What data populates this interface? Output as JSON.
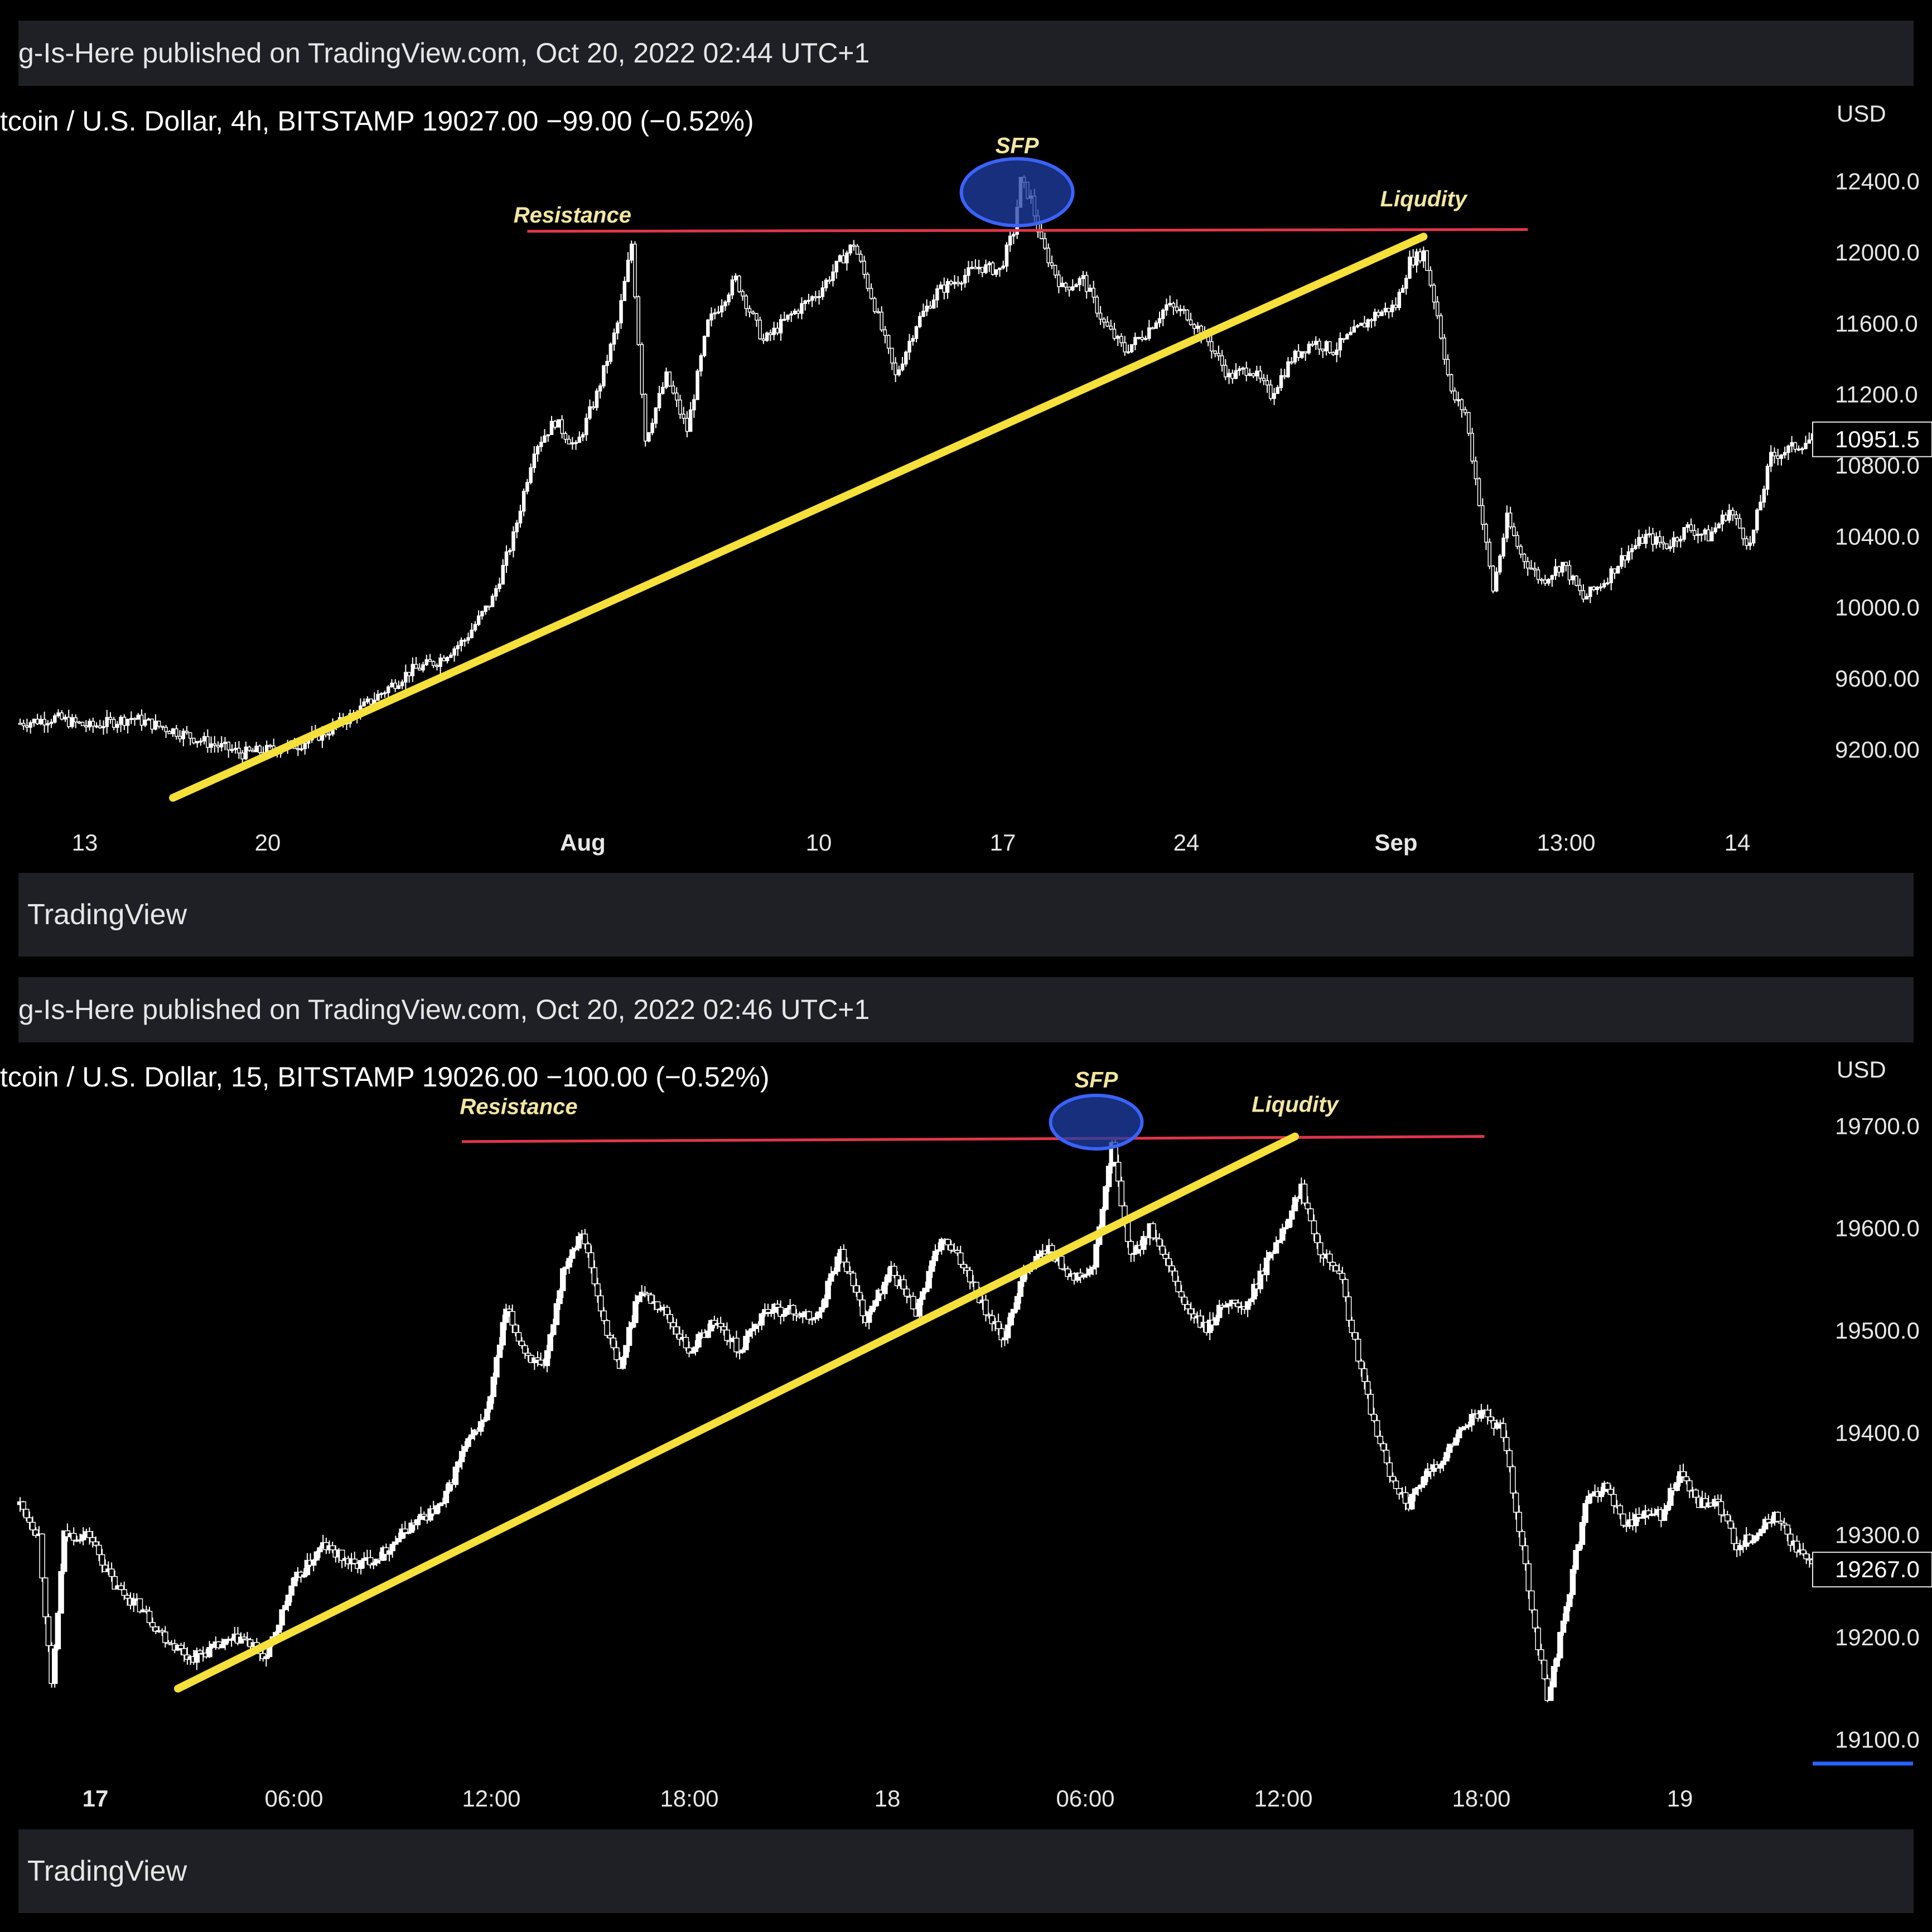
{
  "panels": [
    {
      "publisher": "g-Is-Here published on TradingView.com, Oct 20, 2022 02:44 UTC+1",
      "symbol_line": "tcoin / U.S. Dollar, 4h, BITSTAMP  19027.00  −99.00 (−0.52%)",
      "currency": "USD",
      "brand": "TradingView",
      "price_labels": [
        "12400.0",
        "12000.0",
        "11600.0",
        "11200.0",
        "10800.0",
        "10400.0",
        "10000.0",
        "9600.00",
        "9200.00"
      ],
      "last_price_label": "10951.5",
      "time_labels": [
        "13",
        "20",
        "Aug",
        "10",
        "17",
        "24",
        "Sep",
        "13:00",
        "14"
      ],
      "bold_time_labels": [
        "Aug",
        "Sep"
      ],
      "annotations": {
        "resistance": "Resistance",
        "sfp": "SFP",
        "liquidity": "Liqudity"
      }
    },
    {
      "publisher": "g-Is-Here published on TradingView.com, Oct 20, 2022 02:46 UTC+1",
      "symbol_line": "tcoin / U.S. Dollar, 15, BITSTAMP  19026.00  −100.00 (−0.52%)",
      "currency": "USD",
      "brand": "TradingView",
      "price_labels": [
        "19700.0",
        "19600.0",
        "19500.0",
        "19400.0",
        "19300.0",
        "19200.0",
        "19100.0"
      ],
      "last_price_label": "19267.0",
      "time_labels": [
        "17",
        "06:00",
        "12:00",
        "18:00",
        "18",
        "06:00",
        "12:00",
        "18:00",
        "19"
      ],
      "bold_time_labels": [
        "17"
      ],
      "annotations": {
        "resistance": "Resistance",
        "sfp": "SFP",
        "liquidity": "Liqudity"
      }
    }
  ],
  "colors": {
    "background": "#000000",
    "bar": "#1e2025",
    "candle": "#ffffff",
    "resistance": "#e0364a",
    "trendline": "#f5e03c",
    "sfp_circle": "#1f3fa6",
    "annotation_text": "#f3e6a0",
    "last_price_line": "#2962ff"
  },
  "chart_data": [
    {
      "type": "candlestick",
      "title": "tcoin / U.S. Dollar, 4h, BITSTAMP",
      "y_unit": "USD",
      "ylim": [
        8900,
        12700
      ],
      "x_ticks": [
        "13",
        "20",
        "Aug",
        "10",
        "17",
        "24",
        "Sep",
        "13:00",
        "14"
      ],
      "y_ticks": [
        9200,
        9600,
        10000,
        10400,
        10800,
        11200,
        11600,
        12000,
        12400
      ],
      "last_price": 10951.5,
      "price_path": [
        [
          0,
          9350
        ],
        [
          10,
          9380
        ],
        [
          20,
          9330
        ],
        [
          32,
          9380
        ],
        [
          44,
          9310
        ],
        [
          54,
          9240
        ],
        [
          64,
          9180
        ],
        [
          72,
          9200
        ],
        [
          80,
          9230
        ],
        [
          88,
          9300
        ],
        [
          96,
          9400
        ],
        [
          104,
          9520
        ],
        [
          112,
          9640
        ],
        [
          120,
          9700
        ],
        [
          128,
          9820
        ],
        [
          136,
          10050
        ],
        [
          142,
          10400
        ],
        [
          148,
          10900
        ],
        [
          154,
          11050
        ],
        [
          160,
          10900
        ],
        [
          166,
          11200
        ],
        [
          172,
          11600
        ],
        [
          176,
          12050
        ],
        [
          180,
          10950
        ],
        [
          186,
          11300
        ],
        [
          192,
          11000
        ],
        [
          198,
          11600
        ],
        [
          206,
          11850
        ],
        [
          214,
          11500
        ],
        [
          222,
          11650
        ],
        [
          230,
          11780
        ],
        [
          236,
          11950
        ],
        [
          240,
          12050
        ],
        [
          246,
          11700
        ],
        [
          252,
          11300
        ],
        [
          258,
          11600
        ],
        [
          264,
          11780
        ],
        [
          270,
          11850
        ],
        [
          276,
          11920
        ],
        [
          282,
          11900
        ],
        [
          286,
          12120
        ],
        [
          288,
          12400
        ],
        [
          291,
          12300
        ],
        [
          294,
          12050
        ],
        [
          300,
          11800
        ],
        [
          306,
          11850
        ],
        [
          312,
          11600
        ],
        [
          318,
          11450
        ],
        [
          324,
          11550
        ],
        [
          330,
          11700
        ],
        [
          336,
          11650
        ],
        [
          342,
          11500
        ],
        [
          348,
          11300
        ],
        [
          354,
          11350
        ],
        [
          360,
          11200
        ],
        [
          366,
          11400
        ],
        [
          372,
          11500
        ],
        [
          378,
          11450
        ],
        [
          384,
          11550
        ],
        [
          390,
          11650
        ],
        [
          396,
          11700
        ],
        [
          400,
          11950
        ],
        [
          404,
          12000
        ],
        [
          408,
          11650
        ],
        [
          412,
          11200
        ],
        [
          416,
          11100
        ],
        [
          420,
          10600
        ],
        [
          424,
          10100
        ],
        [
          428,
          10500
        ],
        [
          432,
          10300
        ],
        [
          438,
          10150
        ],
        [
          444,
          10250
        ],
        [
          450,
          10050
        ],
        [
          456,
          10150
        ],
        [
          462,
          10300
        ],
        [
          468,
          10400
        ],
        [
          474,
          10350
        ],
        [
          480,
          10450
        ],
        [
          486,
          10400
        ],
        [
          492,
          10550
        ],
        [
          498,
          10350
        ],
        [
          504,
          10850
        ],
        [
          510,
          10900
        ],
        [
          516,
          10951.5
        ]
      ],
      "series": [
        {
          "name": "Resistance",
          "values": [
            [
              146,
              12120
            ],
            [
              434,
              12130
            ]
          ]
        },
        {
          "name": "trendline",
          "values": [
            [
              44,
              8930
            ],
            [
              404,
              12090
            ]
          ]
        }
      ],
      "annotations": [
        {
          "text": "Resistance",
          "x": 159,
          "y": 12170
        },
        {
          "text": "SFP",
          "x": 287,
          "y": 12560
        },
        {
          "text": "Liqudity",
          "x": 404,
          "y": 12260
        }
      ]
    },
    {
      "type": "candlestick",
      "title": "tcoin / U.S. Dollar, 15, BITSTAMP",
      "y_unit": "USD",
      "ylim": [
        19080,
        19740
      ],
      "x_ticks": [
        "17",
        "06:00",
        "12:00",
        "18:00",
        "18",
        "06:00",
        "12:00",
        "18:00",
        "19"
      ],
      "y_ticks": [
        19100,
        19200,
        19300,
        19400,
        19500,
        19600,
        19700
      ],
      "last_price": 19267,
      "price_path": [
        [
          0,
          19330
        ],
        [
          6,
          19300
        ],
        [
          10,
          19150
        ],
        [
          14,
          19300
        ],
        [
          22,
          19300
        ],
        [
          30,
          19250
        ],
        [
          38,
          19230
        ],
        [
          46,
          19200
        ],
        [
          54,
          19180
        ],
        [
          62,
          19190
        ],
        [
          70,
          19200
        ],
        [
          78,
          19180
        ],
        [
          86,
          19250
        ],
        [
          96,
          19290
        ],
        [
          106,
          19270
        ],
        [
          114,
          19280
        ],
        [
          124,
          19310
        ],
        [
          134,
          19330
        ],
        [
          140,
          19380
        ],
        [
          148,
          19420
        ],
        [
          154,
          19520
        ],
        [
          160,
          19480
        ],
        [
          166,
          19460
        ],
        [
          172,
          19560
        ],
        [
          178,
          19600
        ],
        [
          184,
          19520
        ],
        [
          190,
          19460
        ],
        [
          196,
          19540
        ],
        [
          204,
          19520
        ],
        [
          212,
          19480
        ],
        [
          220,
          19510
        ],
        [
          228,
          19480
        ],
        [
          236,
          19520
        ],
        [
          244,
          19520
        ],
        [
          252,
          19510
        ],
        [
          260,
          19580
        ],
        [
          268,
          19510
        ],
        [
          276,
          19560
        ],
        [
          284,
          19520
        ],
        [
          292,
          19590
        ],
        [
          300,
          19560
        ],
        [
          306,
          19520
        ],
        [
          312,
          19490
        ],
        [
          318,
          19560
        ],
        [
          326,
          19580
        ],
        [
          334,
          19550
        ],
        [
          340,
          19560
        ],
        [
          346,
          19680
        ],
        [
          352,
          19570
        ],
        [
          358,
          19600
        ],
        [
          364,
          19560
        ],
        [
          370,
          19520
        ],
        [
          376,
          19500
        ],
        [
          382,
          19530
        ],
        [
          388,
          19520
        ],
        [
          394,
          19560
        ],
        [
          400,
          19600
        ],
        [
          406,
          19640
        ],
        [
          412,
          19580
        ],
        [
          418,
          19560
        ],
        [
          422,
          19500
        ],
        [
          428,
          19420
        ],
        [
          434,
          19360
        ],
        [
          440,
          19330
        ],
        [
          446,
          19360
        ],
        [
          452,
          19380
        ],
        [
          458,
          19410
        ],
        [
          464,
          19420
        ],
        [
          470,
          19400
        ],
        [
          476,
          19290
        ],
        [
          480,
          19210
        ],
        [
          484,
          19140
        ],
        [
          490,
          19230
        ],
        [
          496,
          19330
        ],
        [
          502,
          19350
        ],
        [
          508,
          19310
        ],
        [
          514,
          19320
        ],
        [
          520,
          19320
        ],
        [
          526,
          19360
        ],
        [
          532,
          19330
        ],
        [
          538,
          19330
        ],
        [
          544,
          19290
        ],
        [
          550,
          19300
        ],
        [
          556,
          19320
        ],
        [
          562,
          19290
        ],
        [
          568,
          19267
        ]
      ],
      "series": [
        {
          "name": "Resistance",
          "values": [
            [
              140,
              19685
            ],
            [
              464,
              19690
            ]
          ]
        },
        {
          "name": "trendline",
          "values": [
            [
              50,
              19150
            ],
            [
              404,
              19690
            ]
          ]
        }
      ],
      "annotations": [
        {
          "text": "Resistance",
          "x": 158,
          "y": 19712
        },
        {
          "text": "SFP",
          "x": 341,
          "y": 19738
        },
        {
          "text": "Liqudity",
          "x": 404,
          "y": 19714
        }
      ]
    }
  ]
}
